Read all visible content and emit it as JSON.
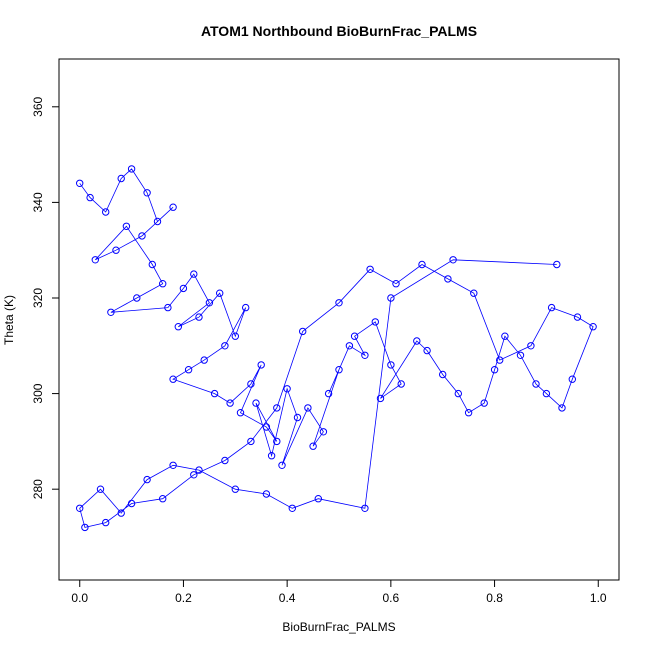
{
  "chart_data": {
    "type": "scatter",
    "title": "ATOM1 Northbound BioBurnFrac_PALMS",
    "xlabel": "BioBurnFrac_PALMS",
    "ylabel": "Theta (K)",
    "xlim": [
      -0.04,
      1.04
    ],
    "ylim": [
      261.0,
      370.0
    ],
    "x_ticks": [
      0.0,
      0.2,
      0.4,
      0.6,
      0.8,
      1.0
    ],
    "x_tick_labels": [
      "0.0",
      "0.2",
      "0.4",
      "0.6",
      "0.8",
      "1.0"
    ],
    "y_ticks": [
      280,
      300,
      320,
      340,
      360
    ],
    "y_tick_labels": [
      "280",
      "300",
      "320",
      "340",
      "360"
    ],
    "marker": "open-circle",
    "connected": true,
    "grid": false,
    "series": [
      {
        "color": "#0000ff",
        "x": [
          0.0,
          0.02,
          0.05,
          0.08,
          0.1,
          0.13,
          0.15,
          0.18,
          0.12,
          0.07,
          0.03,
          0.09,
          0.14,
          0.16,
          0.11,
          0.06,
          0.17,
          0.2,
          0.22,
          0.25,
          0.19,
          0.23,
          0.27,
          0.3,
          0.32,
          0.28,
          0.24,
          0.21,
          0.18,
          0.26,
          0.29,
          0.33,
          0.35,
          0.31,
          0.36,
          0.38,
          0.34,
          0.37,
          0.4,
          0.42,
          0.39,
          0.44,
          0.47,
          0.45,
          0.5,
          0.48,
          0.52,
          0.55,
          0.53,
          0.57,
          0.6,
          0.62,
          0.58,
          0.65,
          0.67,
          0.7,
          0.73,
          0.75,
          0.78,
          0.8,
          0.82,
          0.85,
          0.88,
          0.9,
          0.93,
          0.95,
          0.99,
          0.96,
          0.91,
          0.87,
          0.81,
          0.76,
          0.71,
          0.66,
          0.61,
          0.56,
          0.5,
          0.43,
          0.38,
          0.33,
          0.28,
          0.22,
          0.16,
          0.1,
          0.05,
          0.01,
          0.0,
          0.04,
          0.08,
          0.13,
          0.18,
          0.23,
          0.3,
          0.36,
          0.41,
          0.46,
          0.55,
          0.6,
          0.72,
          0.92
        ],
        "y": [
          344,
          341,
          338,
          345,
          347,
          342,
          336,
          339,
          333,
          330,
          328,
          335,
          327,
          323,
          320,
          317,
          318,
          322,
          325,
          319,
          314,
          316,
          321,
          312,
          318,
          310,
          307,
          305,
          303,
          300,
          298,
          302,
          306,
          296,
          293,
          290,
          298,
          287,
          301,
          295,
          285,
          297,
          292,
          289,
          305,
          300,
          310,
          308,
          312,
          315,
          306,
          302,
          299,
          311,
          309,
          304,
          300,
          296,
          298,
          305,
          312,
          308,
          302,
          300,
          297,
          303,
          314,
          316,
          318,
          310,
          307,
          321,
          324,
          327,
          323,
          326,
          319,
          313,
          297,
          290,
          286,
          283,
          278,
          277,
          273,
          272,
          276,
          280,
          275,
          282,
          285,
          284,
          280,
          279,
          276,
          278,
          276,
          320,
          328,
          327
        ]
      }
    ]
  }
}
